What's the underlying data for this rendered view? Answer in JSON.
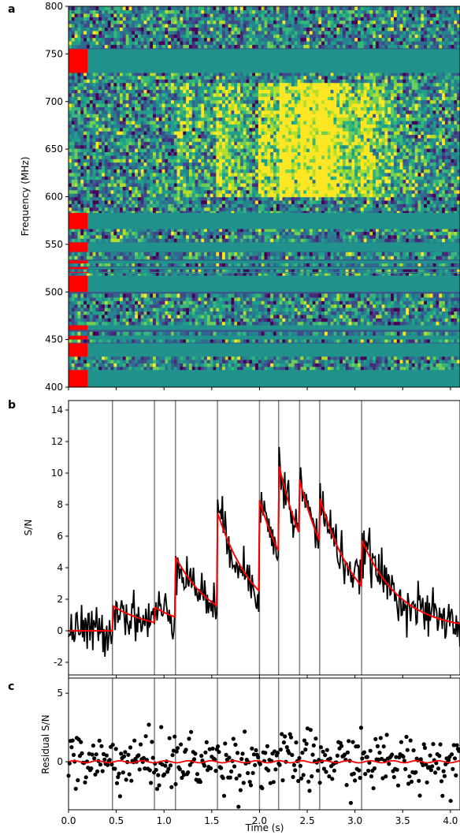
{
  "chart_data": [
    {
      "panel": "a",
      "type": "heatmap",
      "ylabel": "Frequency (MHz)",
      "ylim": [
        400,
        800
      ],
      "yticks": [
        400,
        450,
        500,
        550,
        600,
        650,
        700,
        750,
        800
      ],
      "xlim": [
        0,
        4.1
      ],
      "masked_bands_mhz": [
        [
          400,
          418
        ],
        [
          432,
          446
        ],
        [
          450,
          454
        ],
        [
          460,
          465
        ],
        [
          500,
          517
        ],
        [
          520,
          521
        ],
        [
          524,
          526
        ],
        [
          530,
          533
        ],
        [
          542,
          552
        ],
        [
          566,
          583
        ],
        [
          730,
          755
        ]
      ],
      "mask_color": "#ff0000",
      "masked_fill_color": "#21918c",
      "burst_bands_mhz": [
        [
          600,
          720
        ]
      ],
      "colormap": "viridis"
    },
    {
      "panel": "b",
      "type": "line",
      "ylabel": "S/N",
      "ylim": [
        -2.8,
        14.6
      ],
      "yticks": [
        -2,
        0,
        2,
        4,
        6,
        8,
        10,
        12,
        14
      ],
      "xlim": [
        0,
        4.1
      ],
      "component_times_s": [
        0.46,
        0.9,
        1.12,
        1.56,
        2.0,
        2.2,
        2.42,
        2.63,
        3.07
      ],
      "model_amplitudes": [
        1.6,
        1.5,
        4.7,
        7.5,
        8.3,
        10.6,
        9.6,
        8.5,
        5.8
      ],
      "series": [
        {
          "values": "noisy time series (data)",
          "color": "#000000"
        },
        {
          "values": "exponential model fit",
          "color": "#ff0000"
        }
      ]
    },
    {
      "panel": "c",
      "type": "scatter",
      "ylabel": "Residual S/N",
      "xlabel": "Time (s)",
      "ylim": [
        -3.5,
        6.1
      ],
      "yticks": [
        -5,
        0,
        5
      ],
      "xlim": [
        0,
        4.1
      ],
      "xticks": [
        0.0,
        0.5,
        1.0,
        1.5,
        2.0,
        2.5,
        3.0,
        3.5,
        4.0
      ],
      "xtick_labels": [
        "0.0",
        "0.5",
        "1.0",
        "1.5",
        "2.0",
        "2.5",
        "3.0",
        "3.5",
        "4.0"
      ],
      "series": [
        {
          "values": "residual points",
          "color": "#000000"
        },
        {
          "values": "zero line",
          "color": "#ff0000"
        }
      ]
    }
  ],
  "labels": {
    "a": "a",
    "b": "b",
    "c": "c",
    "freq": "Frequency (MHz)",
    "sn": "S/N",
    "res": "Residual S/N",
    "time": "Time (s)"
  }
}
